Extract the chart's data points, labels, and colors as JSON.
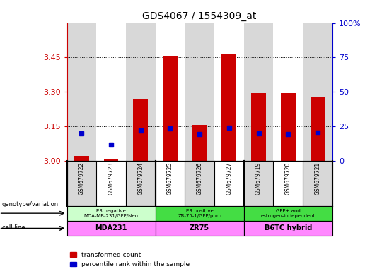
{
  "title": "GDS4067 / 1554309_at",
  "samples": [
    "GSM679722",
    "GSM679723",
    "GSM679724",
    "GSM679725",
    "GSM679726",
    "GSM679727",
    "GSM679719",
    "GSM679720",
    "GSM679721"
  ],
  "red_values": [
    3.02,
    3.005,
    3.27,
    3.455,
    3.155,
    3.465,
    3.295,
    3.295,
    3.275
  ],
  "blue_percentiles": [
    20,
    11.5,
    22,
    23.5,
    19.5,
    24,
    20,
    19.5,
    20.5
  ],
  "ylim_left": [
    3.0,
    3.6
  ],
  "ylim_right": [
    0,
    100
  ],
  "yticks_left": [
    3.0,
    3.15,
    3.3,
    3.45
  ],
  "yticks_right": [
    0,
    25,
    50,
    75,
    100
  ],
  "groups": [
    {
      "label": "ER negative\nMDA-MB-231/GFP/Neo",
      "start": 0,
      "end": 3,
      "color": "#ccffcc"
    },
    {
      "label": "ER positive\nZR-75-1/GFP/puro",
      "start": 3,
      "end": 6,
      "color": "#44dd44"
    },
    {
      "label": "GFP+ and\nestrogen-independent",
      "start": 6,
      "end": 9,
      "color": "#44dd44"
    }
  ],
  "cell_lines": [
    {
      "label": "MDA231",
      "start": 0,
      "end": 3,
      "color": "#ff88ff"
    },
    {
      "label": "ZR75",
      "start": 3,
      "end": 6,
      "color": "#ff88ff"
    },
    {
      "label": "B6TC hybrid",
      "start": 6,
      "end": 9,
      "color": "#ff88ff"
    }
  ],
  "bar_width": 0.5,
  "red_color": "#cc0000",
  "blue_color": "#0000cc",
  "left_axis_color": "#cc0000",
  "right_axis_color": "#0000cc",
  "background_color": "#ffffff",
  "bar_bg_colors": [
    "#d8d8d8",
    "#ffffff",
    "#d8d8d8",
    "#ffffff",
    "#d8d8d8",
    "#ffffff",
    "#d8d8d8",
    "#ffffff",
    "#d8d8d8"
  ]
}
